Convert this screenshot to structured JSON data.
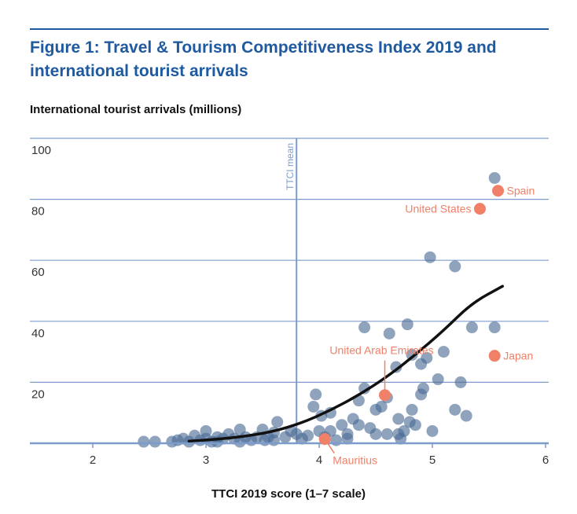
{
  "header": {
    "title_line1": "Figure 1: Travel & Tourism Competitiveness Index 2019 and",
    "title_line2": "international tourist arrivals"
  },
  "colors": {
    "accent": "#1f5aa0",
    "grid": "#7d9ccb",
    "point": "#4a6a94",
    "highlight": "#f08068",
    "trend": "#111111"
  },
  "chart_data": {
    "type": "scatter",
    "title": "Figure 1: Travel & Tourism Competitiveness Index 2019 and international tourist arrivals",
    "xlabel": "TTCI 2019 score (1–7 scale)",
    "ylabel": "International tourist arrivals (millions)",
    "xlim": [
      1.5,
      6
    ],
    "ylim": [
      0,
      100
    ],
    "x_ticks": [
      2,
      3,
      4,
      5,
      6
    ],
    "y_ticks": [
      20,
      40,
      60,
      80,
      100
    ],
    "grid": "horizontal",
    "reference_line": {
      "x": 3.8,
      "label": "TTCI mean"
    },
    "points": [
      {
        "x": 2.45,
        "y": 0.5
      },
      {
        "x": 2.55,
        "y": 0.5
      },
      {
        "x": 2.7,
        "y": 0.5
      },
      {
        "x": 2.75,
        "y": 1
      },
      {
        "x": 2.8,
        "y": 1.5
      },
      {
        "x": 2.85,
        "y": 0.5
      },
      {
        "x": 2.9,
        "y": 2.5
      },
      {
        "x": 2.95,
        "y": 1
      },
      {
        "x": 3.0,
        "y": 1.5
      },
      {
        "x": 3.05,
        "y": 0.5
      },
      {
        "x": 3.1,
        "y": 2
      },
      {
        "x": 3.15,
        "y": 1.5
      },
      {
        "x": 3.2,
        "y": 3
      },
      {
        "x": 3.25,
        "y": 1.5
      },
      {
        "x": 3.3,
        "y": 4.5
      },
      {
        "x": 3.35,
        "y": 2
      },
      {
        "x": 3.4,
        "y": 1
      },
      {
        "x": 3.45,
        "y": 2
      },
      {
        "x": 3.5,
        "y": 4.5
      },
      {
        "x": 3.55,
        "y": 2
      },
      {
        "x": 3.6,
        "y": 3.5
      },
      {
        "x": 3.63,
        "y": 7
      },
      {
        "x": 3.7,
        "y": 2
      },
      {
        "x": 3.75,
        "y": 4
      },
      {
        "x": 3.8,
        "y": 3
      },
      {
        "x": 3.85,
        "y": 1.5
      },
      {
        "x": 3.9,
        "y": 2.5
      },
      {
        "x": 3.95,
        "y": 12
      },
      {
        "x": 3.97,
        "y": 16
      },
      {
        "x": 4.0,
        "y": 4
      },
      {
        "x": 4.02,
        "y": 9
      },
      {
        "x": 4.05,
        "y": 2
      },
      {
        "x": 4.1,
        "y": 4
      },
      {
        "x": 4.15,
        "y": 1
      },
      {
        "x": 4.2,
        "y": 6
      },
      {
        "x": 4.25,
        "y": 3
      },
      {
        "x": 4.3,
        "y": 8
      },
      {
        "x": 4.35,
        "y": 14
      },
      {
        "x": 4.4,
        "y": 18
      },
      {
        "x": 4.45,
        "y": 5
      },
      {
        "x": 4.5,
        "y": 3
      },
      {
        "x": 4.55,
        "y": 12
      },
      {
        "x": 4.6,
        "y": 3
      },
      {
        "x": 4.7,
        "y": 8
      },
      {
        "x": 4.72,
        "y": 1.5
      },
      {
        "x": 4.75,
        "y": 4
      },
      {
        "x": 4.8,
        "y": 7
      },
      {
        "x": 4.82,
        "y": 11
      },
      {
        "x": 4.85,
        "y": 6
      },
      {
        "x": 4.9,
        "y": 26
      },
      {
        "x": 4.95,
        "y": 28
      },
      {
        "x": 4.5,
        "y": 11
      },
      {
        "x": 4.6,
        "y": 15
      },
      {
        "x": 4.4,
        "y": 38
      },
      {
        "x": 4.62,
        "y": 36
      },
      {
        "x": 4.78,
        "y": 39
      },
      {
        "x": 4.68,
        "y": 25
      },
      {
        "x": 4.82,
        "y": 29
      },
      {
        "x": 4.9,
        "y": 16
      },
      {
        "x": 4.92,
        "y": 18
      },
      {
        "x": 5.0,
        "y": 4
      },
      {
        "x": 5.05,
        "y": 21
      },
      {
        "x": 5.1,
        "y": 30
      },
      {
        "x": 5.2,
        "y": 11
      },
      {
        "x": 5.25,
        "y": 20
      },
      {
        "x": 5.3,
        "y": 9
      },
      {
        "x": 5.35,
        "y": 38
      },
      {
        "x": 5.55,
        "y": 38
      },
      {
        "x": 4.98,
        "y": 61
      },
      {
        "x": 5.2,
        "y": 58
      },
      {
        "x": 5.55,
        "y": 87
      },
      {
        "x": 3.0,
        "y": 4
      },
      {
        "x": 3.1,
        "y": 0.5
      },
      {
        "x": 3.3,
        "y": 0.5
      },
      {
        "x": 3.6,
        "y": 1
      },
      {
        "x": 4.1,
        "y": 10
      },
      {
        "x": 4.35,
        "y": 6
      },
      {
        "x": 4.7,
        "y": 3
      },
      {
        "x": 3.52,
        "y": 1
      },
      {
        "x": 4.25,
        "y": 1.5
      }
    ],
    "highlighted": [
      {
        "name": "Spain",
        "x": 5.58,
        "y": 82.8,
        "label_pos": "right"
      },
      {
        "name": "United States",
        "x": 5.42,
        "y": 76.9,
        "label_pos": "left"
      },
      {
        "name": "Japan",
        "x": 5.55,
        "y": 28.7,
        "label_pos": "right"
      },
      {
        "name": "United Arab Emirates",
        "x": 4.58,
        "y": 15.8,
        "label_pos": "above"
      },
      {
        "name": "Mauritius",
        "x": 4.05,
        "y": 1.4,
        "label_pos": "below"
      }
    ],
    "trend_line": [
      {
        "x": 2.85,
        "y": 0.7
      },
      {
        "x": 3.1,
        "y": 1.3
      },
      {
        "x": 3.35,
        "y": 2.3
      },
      {
        "x": 3.6,
        "y": 3.9
      },
      {
        "x": 3.85,
        "y": 6.7
      },
      {
        "x": 4.1,
        "y": 10.8
      },
      {
        "x": 4.35,
        "y": 15.8
      },
      {
        "x": 4.6,
        "y": 21.8
      },
      {
        "x": 4.85,
        "y": 29
      },
      {
        "x": 5.1,
        "y": 37
      },
      {
        "x": 5.35,
        "y": 46
      },
      {
        "x": 5.62,
        "y": 51.5
      }
    ]
  }
}
